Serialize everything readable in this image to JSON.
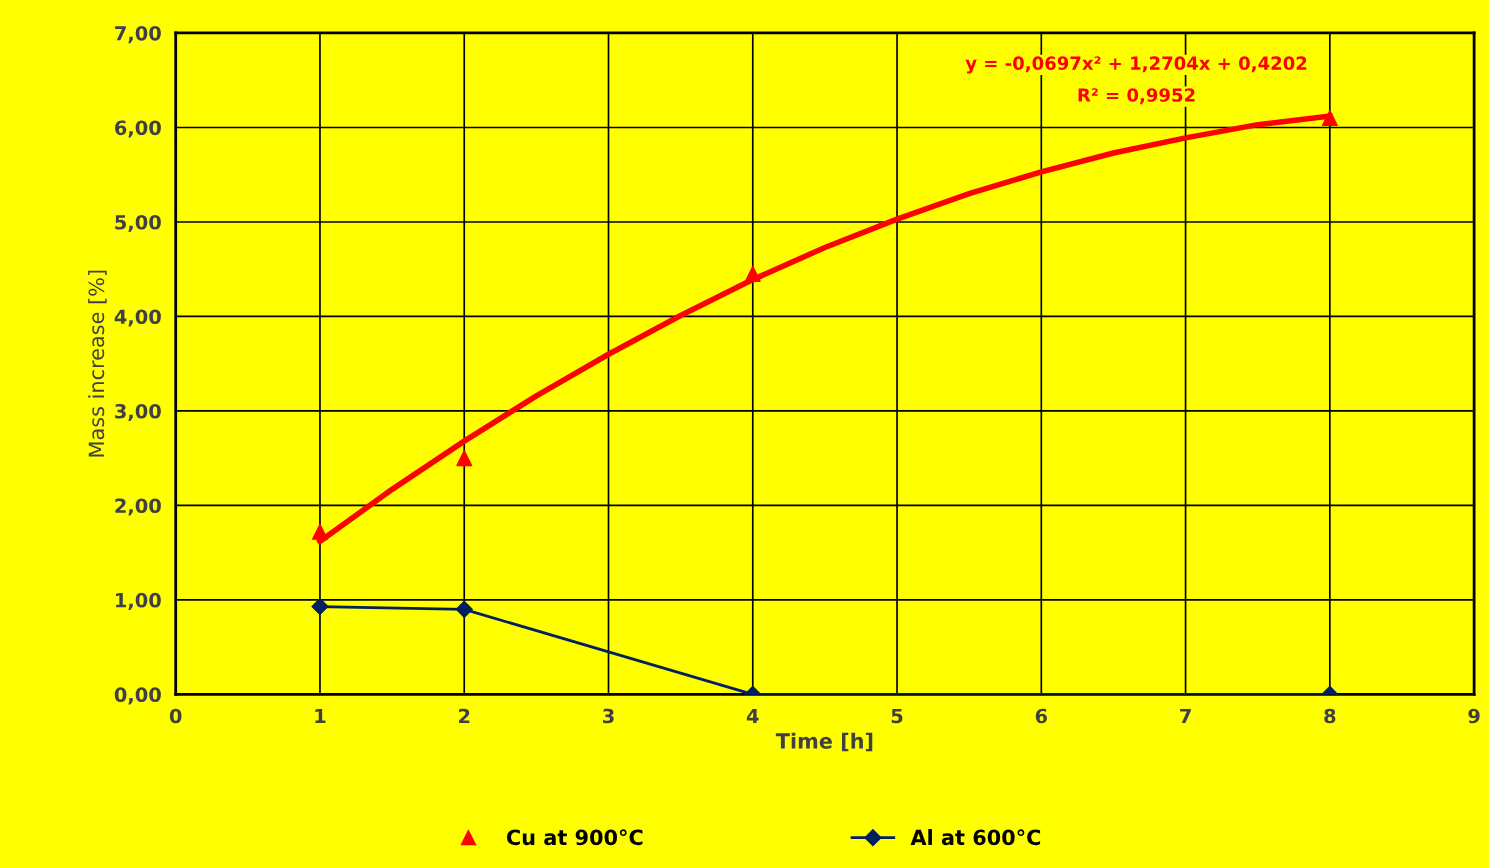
{
  "chart_data": {
    "type": "line",
    "xlabel": "Time [h]",
    "ylabel": "Mass increase [%]",
    "xlim": [
      0,
      9
    ],
    "xticks": [
      0,
      1,
      2,
      3,
      4,
      5,
      6,
      7,
      8,
      9
    ],
    "ylim": [
      0,
      7
    ],
    "yticks": [
      {
        "value": 0,
        "label": "0,00"
      },
      {
        "value": 1,
        "label": "1,00"
      },
      {
        "value": 2,
        "label": "2,00"
      },
      {
        "value": 3,
        "label": "3,00"
      },
      {
        "value": 4,
        "label": "4,00"
      },
      {
        "value": 5,
        "label": "5,00"
      },
      {
        "value": 6,
        "label": "6,00"
      },
      {
        "value": 7,
        "label": "7,00"
      }
    ],
    "grid": true,
    "legend": "bottom",
    "series": [
      {
        "name": "Cu at 900°C",
        "type": "scatter",
        "marker": "triangle",
        "color": "#ff0000",
        "x": [
          1,
          2,
          4,
          8
        ],
        "values": [
          1.72,
          2.5,
          4.45,
          6.1
        ]
      },
      {
        "name": "Al at 600°C",
        "type": "line",
        "marker": "diamond",
        "color": "#002060",
        "x": [
          1,
          2,
          4,
          8
        ],
        "values": [
          0.93,
          0.9,
          0.0,
          0.0
        ]
      },
      {
        "marker": "none",
        "color": "#ff0000",
        "x": [
          1,
          1.5,
          2,
          2.5,
          3,
          3.5,
          4,
          4.5,
          5,
          5.5,
          6,
          6.5,
          7,
          7.5,
          8
        ],
        "values": [
          1.62,
          2.17,
          2.68,
          3.16,
          3.6,
          4.01,
          4.39,
          4.73,
          5.03,
          5.3,
          5.53,
          5.73,
          5.89,
          6.03,
          6.12
        ]
      }
    ],
    "annotations": [
      "y = -0,0697x² + 1,2704x + 0,4202",
      "R² = 0,9952"
    ]
  }
}
